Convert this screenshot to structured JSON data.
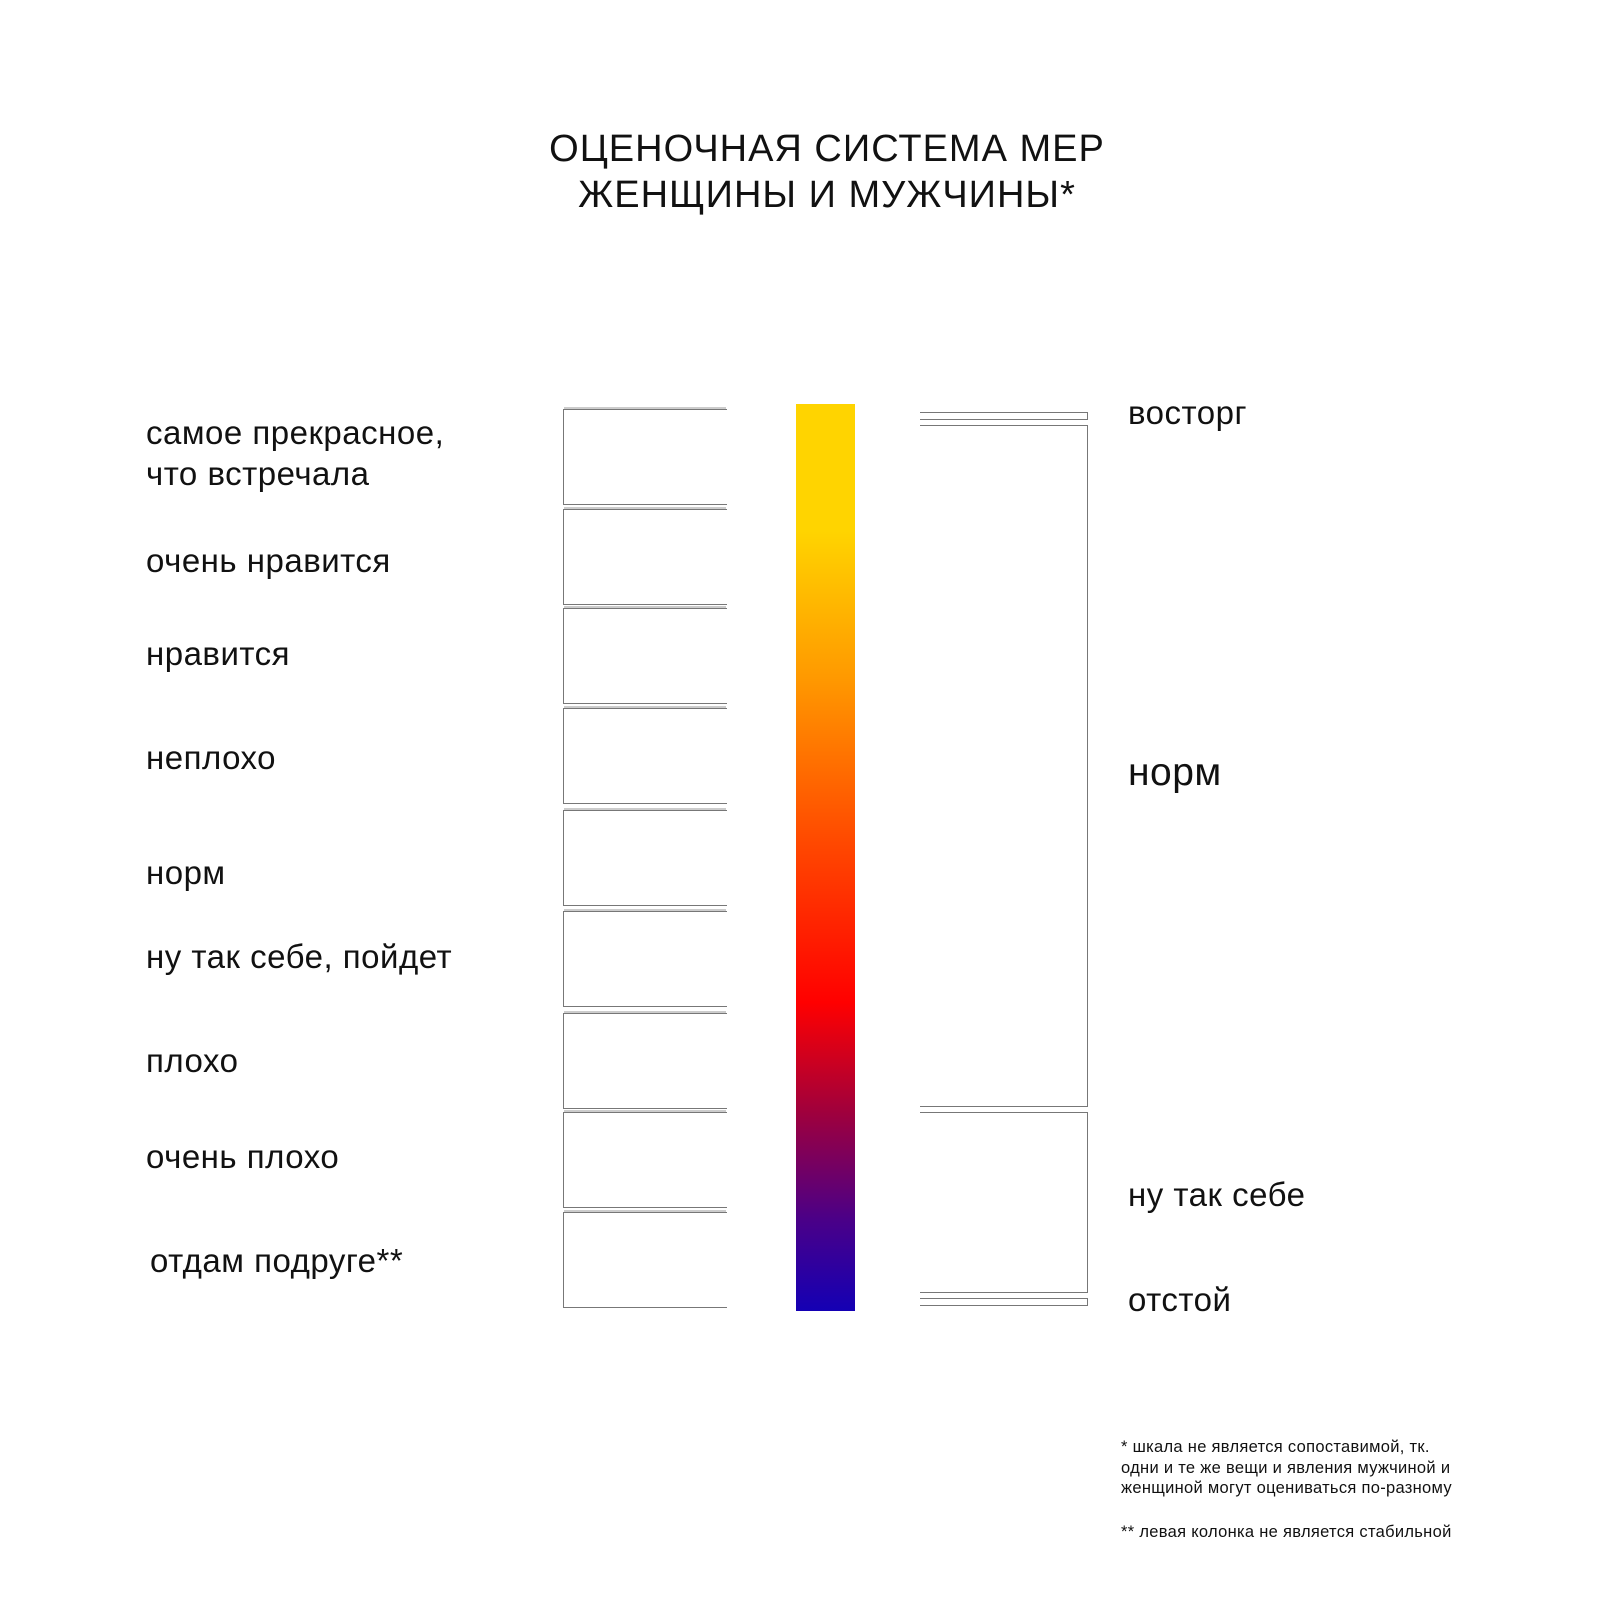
{
  "title": {
    "line1": "ОЦЕНОЧНАЯ СИСТЕМА МЕР",
    "line2": "ЖЕНЩИНЫ И МУЖЧИНЫ*"
  },
  "left_column": {
    "items": [
      {
        "label": "самое прекрасное,",
        "label2": "что встречала"
      },
      {
        "label": "очень нравится"
      },
      {
        "label": "нравится"
      },
      {
        "label": "неплохо"
      },
      {
        "label": "норм"
      },
      {
        "label": "ну так себе, пойдет"
      },
      {
        "label": "плохо"
      },
      {
        "label": "очень плохо"
      },
      {
        "label": "отдам подруге**"
      }
    ]
  },
  "right_column": {
    "items": [
      {
        "label": "восторг"
      },
      {
        "label": "норм"
      },
      {
        "label": "ну так себе"
      },
      {
        "label": "отстой"
      }
    ]
  },
  "gradient_bar": {
    "colors": [
      "#FFD400",
      "#FFD400",
      "#FF9A00",
      "#FF4A00",
      "#FF0000",
      "#A0003C",
      "#4A0088",
      "#1400B4"
    ]
  },
  "footnotes": {
    "note1": [
      "* шкала не является сопоставимой, тк.",
      "одни и те же вещи и явления мужчиной и",
      "женщиной могут оцениваться по-разному"
    ],
    "note2": "** левая колонка не является стабильной"
  }
}
